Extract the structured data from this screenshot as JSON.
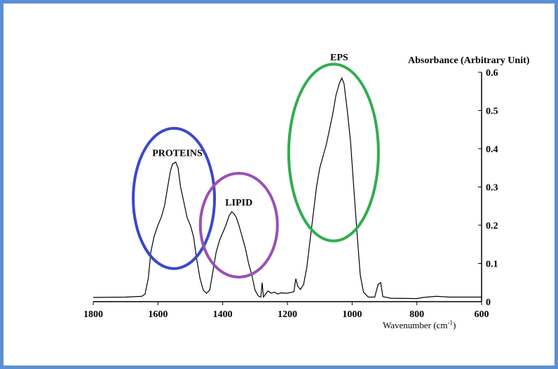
{
  "chart_data": {
    "type": "line",
    "title": "",
    "ylabel": "Absorbance (Arbitrary Unit)",
    "xlabel_main": "Wavenumber (cm",
    "xlabel_sup": "-1",
    "xlabel_close": ")",
    "xlim": [
      1800,
      600
    ],
    "ylim": [
      0,
      0.6
    ],
    "x_reversed": true,
    "x_ticks": [
      "1800",
      "1600",
      "1400",
      "1200",
      "1000",
      "800",
      "600"
    ],
    "y_ticks": [
      "0",
      "0.1",
      "0.2",
      "0.3",
      "0.4",
      "0.5",
      "0.6"
    ],
    "grid": false,
    "series": [
      {
        "color": "#000000",
        "points": [
          [
            1800,
            0.011
          ],
          [
            1700,
            0.012
          ],
          [
            1650,
            0.014
          ],
          [
            1640,
            0.02
          ],
          [
            1630,
            0.06
          ],
          [
            1622,
            0.13
          ],
          [
            1612,
            0.17
          ],
          [
            1600,
            0.2
          ],
          [
            1590,
            0.22
          ],
          [
            1580,
            0.25
          ],
          [
            1570,
            0.3
          ],
          [
            1562,
            0.34
          ],
          [
            1555,
            0.36
          ],
          [
            1545,
            0.365
          ],
          [
            1538,
            0.35
          ],
          [
            1530,
            0.3
          ],
          [
            1520,
            0.26
          ],
          [
            1510,
            0.22
          ],
          [
            1500,
            0.2
          ],
          [
            1490,
            0.17
          ],
          [
            1480,
            0.11
          ],
          [
            1470,
            0.06
          ],
          [
            1460,
            0.03
          ],
          [
            1450,
            0.022
          ],
          [
            1440,
            0.03
          ],
          [
            1430,
            0.08
          ],
          [
            1420,
            0.13
          ],
          [
            1410,
            0.16
          ],
          [
            1400,
            0.18
          ],
          [
            1390,
            0.2
          ],
          [
            1380,
            0.225
          ],
          [
            1372,
            0.235
          ],
          [
            1365,
            0.23
          ],
          [
            1358,
            0.22
          ],
          [
            1350,
            0.2
          ],
          [
            1340,
            0.17
          ],
          [
            1330,
            0.14
          ],
          [
            1320,
            0.1
          ],
          [
            1310,
            0.07
          ],
          [
            1300,
            0.03
          ],
          [
            1290,
            0.015
          ],
          [
            1282,
            0.012
          ],
          [
            1278,
            0.05
          ],
          [
            1274,
            0.012
          ],
          [
            1260,
            0.028
          ],
          [
            1250,
            0.022
          ],
          [
            1240,
            0.025
          ],
          [
            1230,
            0.02
          ],
          [
            1220,
            0.023
          ],
          [
            1200,
            0.022
          ],
          [
            1180,
            0.026
          ],
          [
            1174,
            0.06
          ],
          [
            1168,
            0.04
          ],
          [
            1160,
            0.032
          ],
          [
            1150,
            0.045
          ],
          [
            1140,
            0.09
          ],
          [
            1130,
            0.16
          ],
          [
            1120,
            0.23
          ],
          [
            1110,
            0.3
          ],
          [
            1100,
            0.35
          ],
          [
            1090,
            0.38
          ],
          [
            1080,
            0.41
          ],
          [
            1070,
            0.45
          ],
          [
            1060,
            0.49
          ],
          [
            1050,
            0.54
          ],
          [
            1040,
            0.57
          ],
          [
            1032,
            0.585
          ],
          [
            1025,
            0.57
          ],
          [
            1015,
            0.5
          ],
          [
            1005,
            0.42
          ],
          [
            995,
            0.3
          ],
          [
            985,
            0.18
          ],
          [
            975,
            0.07
          ],
          [
            965,
            0.025
          ],
          [
            950,
            0.012
          ],
          [
            930,
            0.012
          ],
          [
            920,
            0.045
          ],
          [
            912,
            0.05
          ],
          [
            905,
            0.013
          ],
          [
            880,
            0.009
          ],
          [
            800,
            0.008
          ],
          [
            780,
            0.011
          ],
          [
            740,
            0.014
          ],
          [
            720,
            0.013
          ],
          [
            700,
            0.012
          ],
          [
            600,
            0.012
          ]
        ]
      }
    ],
    "annotations": [
      {
        "text": "PROTEINS",
        "x": 1540,
        "y": 0.37,
        "ellipse_color": "#3a49c9"
      },
      {
        "text": "LIPID",
        "x": 1350,
        "y": 0.24,
        "ellipse_color": "#9b4fb5"
      },
      {
        "text": "EPS",
        "x": 1040,
        "y": 0.62,
        "ellipse_color": "#2fae4f"
      }
    ]
  }
}
